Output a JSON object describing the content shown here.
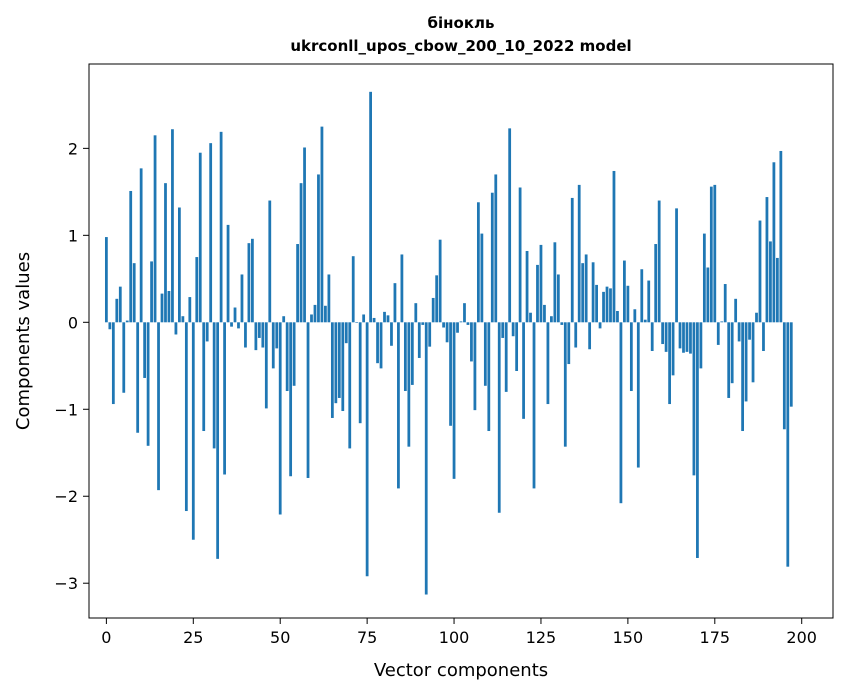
{
  "chart_data": {
    "type": "bar",
    "title": "бінокль",
    "subtitle": "ukrconll_upos_cbow_200_10_2022 model",
    "xlabel": "Vector components",
    "ylabel": "Components values",
    "xlim": [
      -5,
      209
    ],
    "ylim": [
      -3.4,
      2.97
    ],
    "x_ticks": [
      0,
      25,
      50,
      75,
      100,
      125,
      150,
      175,
      200
    ],
    "x_tick_labels": [
      "0",
      "25",
      "50",
      "75",
      "100",
      "125",
      "150",
      "175",
      "200"
    ],
    "y_ticks": [
      -3,
      -2,
      -1,
      0,
      1,
      2
    ],
    "y_tick_labels": [
      "−3",
      "−2",
      "−1",
      "0",
      "1",
      "2"
    ],
    "grid": false,
    "legend": "none",
    "bar_color": "#1f77b4",
    "values": [
      0.98,
      -0.08,
      -0.94,
      0.27,
      0.41,
      -0.81,
      0.02,
      1.51,
      0.68,
      -1.27,
      1.77,
      -0.64,
      -1.42,
      0.7,
      2.15,
      -1.93,
      0.33,
      1.6,
      0.36,
      2.22,
      -0.14,
      1.32,
      0.07,
      -2.17,
      0.29,
      -2.5,
      0.75,
      1.95,
      -1.25,
      -0.22,
      2.06,
      -1.45,
      -2.72,
      2.19,
      -1.75,
      1.12,
      -0.05,
      0.17,
      -0.07,
      0.55,
      -0.29,
      0.91,
      0.96,
      -0.32,
      -0.18,
      -0.29,
      -0.99,
      1.4,
      -0.53,
      -0.3,
      -2.21,
      0.07,
      -0.79,
      -1.77,
      -0.73,
      0.9,
      1.6,
      2.01,
      -1.79,
      0.09,
      0.2,
      1.7,
      2.25,
      0.19,
      0.55,
      -1.1,
      -0.93,
      -0.87,
      -1.02,
      -0.24,
      -1.45,
      0.76,
      0.0,
      -1.16,
      0.09,
      -2.92,
      2.65,
      0.05,
      -0.47,
      -0.53,
      0.12,
      0.08,
      -0.27,
      0.45,
      -1.91,
      0.78,
      -0.79,
      -1.43,
      -0.72,
      0.22,
      -0.41,
      -0.03,
      -3.13,
      -0.28,
      0.28,
      0.54,
      0.95,
      -0.06,
      -0.23,
      -1.19,
      -1.8,
      -0.12,
      0.01,
      0.22,
      -0.03,
      -0.45,
      -1.01,
      1.38,
      1.02,
      -0.73,
      -1.25,
      1.49,
      1.7,
      -2.19,
      -0.18,
      -0.8,
      2.23,
      -0.16,
      -0.56,
      1.55,
      -1.11,
      0.82,
      0.11,
      -1.91,
      0.66,
      0.89,
      0.2,
      -0.94,
      0.07,
      0.92,
      0.55,
      -0.03,
      -1.43,
      -0.48,
      1.43,
      -0.29,
      1.58,
      0.68,
      0.78,
      -0.31,
      0.69,
      0.43,
      -0.07,
      0.35,
      0.41,
      0.39,
      1.74,
      0.13,
      -2.08,
      0.71,
      0.42,
      -0.79,
      0.15,
      -1.67,
      0.61,
      0.03,
      0.48,
      -0.33,
      0.9,
      1.4,
      -0.25,
      -0.34,
      -0.94,
      -0.61,
      1.31,
      -0.3,
      -0.35,
      -0.34,
      -0.36,
      -1.76,
      -2.71,
      -0.53,
      1.02,
      0.63,
      1.56,
      1.58,
      -0.26,
      0.01,
      0.44,
      -0.87,
      -0.7,
      0.27,
      -0.22,
      -1.25,
      -0.91,
      -0.2,
      -0.69,
      0.11,
      1.17,
      -0.33,
      1.44,
      0.93,
      1.84,
      0.74,
      1.97,
      -1.23,
      -2.81,
      -0.97
    ]
  }
}
